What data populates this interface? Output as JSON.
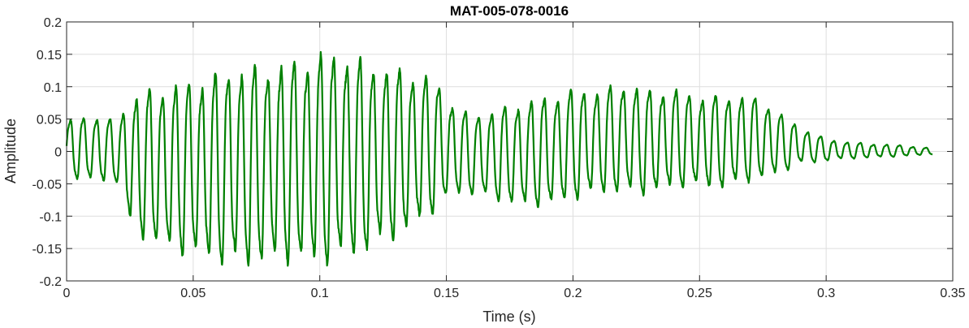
{
  "chart_data": {
    "type": "line",
    "title": "MAT-005-078-0016",
    "xlabel": "Time (s)",
    "ylabel": "Amplitude",
    "xlim": [
      0,
      0.35
    ],
    "ylim": [
      -0.2,
      0.2
    ],
    "grid": true,
    "x_ticks": [
      0,
      0.05,
      0.1,
      0.15,
      0.2,
      0.25,
      0.3,
      0.35
    ],
    "x_tick_labels": [
      "0",
      "0.05",
      "0.1",
      "0.15",
      "0.2",
      "0.25",
      "0.3",
      "0.35"
    ],
    "y_ticks": [
      -0.2,
      -0.15,
      -0.1,
      -0.05,
      0,
      0.05,
      0.1,
      0.15,
      0.2
    ],
    "y_tick_labels": [
      "-0.2",
      "-0.15",
      "-0.1",
      "-0.05",
      "0",
      "0.05",
      "0.1",
      "0.15",
      "0.2"
    ],
    "series": [
      {
        "color": "#008000",
        "x": [
          0.0,
          0.01,
          0.02,
          0.025,
          0.03,
          0.04,
          0.05,
          0.06,
          0.07,
          0.08,
          0.09,
          0.1,
          0.108,
          0.115,
          0.125,
          0.135,
          0.145,
          0.15,
          0.155,
          0.16,
          0.17,
          0.18,
          0.19,
          0.2,
          0.21,
          0.22,
          0.23,
          0.24,
          0.25,
          0.26,
          0.27,
          0.28,
          0.285,
          0.29,
          0.295,
          0.3,
          0.31,
          0.32,
          0.33,
          0.342
        ],
        "envelope_upper": [
          0.05,
          0.06,
          0.05,
          0.09,
          0.1,
          0.11,
          0.12,
          0.13,
          0.14,
          0.14,
          0.15,
          0.16,
          0.165,
          0.15,
          0.14,
          0.13,
          0.12,
          0.09,
          0.07,
          0.06,
          0.07,
          0.08,
          0.09,
          0.1,
          0.1,
          0.11,
          0.1,
          0.1,
          0.09,
          0.09,
          0.09,
          0.07,
          0.05,
          0.04,
          0.03,
          0.02,
          0.015,
          0.012,
          0.01,
          0.005
        ],
        "envelope_lower": [
          -0.04,
          -0.05,
          -0.05,
          -0.12,
          -0.14,
          -0.16,
          -0.17,
          -0.18,
          -0.185,
          -0.18,
          -0.18,
          -0.185,
          -0.18,
          -0.17,
          -0.15,
          -0.13,
          -0.1,
          -0.08,
          -0.07,
          -0.07,
          -0.08,
          -0.09,
          -0.09,
          -0.08,
          -0.07,
          -0.07,
          -0.07,
          -0.06,
          -0.06,
          -0.06,
          -0.05,
          -0.04,
          -0.03,
          -0.02,
          -0.02,
          -0.015,
          -0.012,
          -0.01,
          -0.008,
          -0.005
        ],
        "cycle_period_s": 0.0052
      }
    ]
  }
}
